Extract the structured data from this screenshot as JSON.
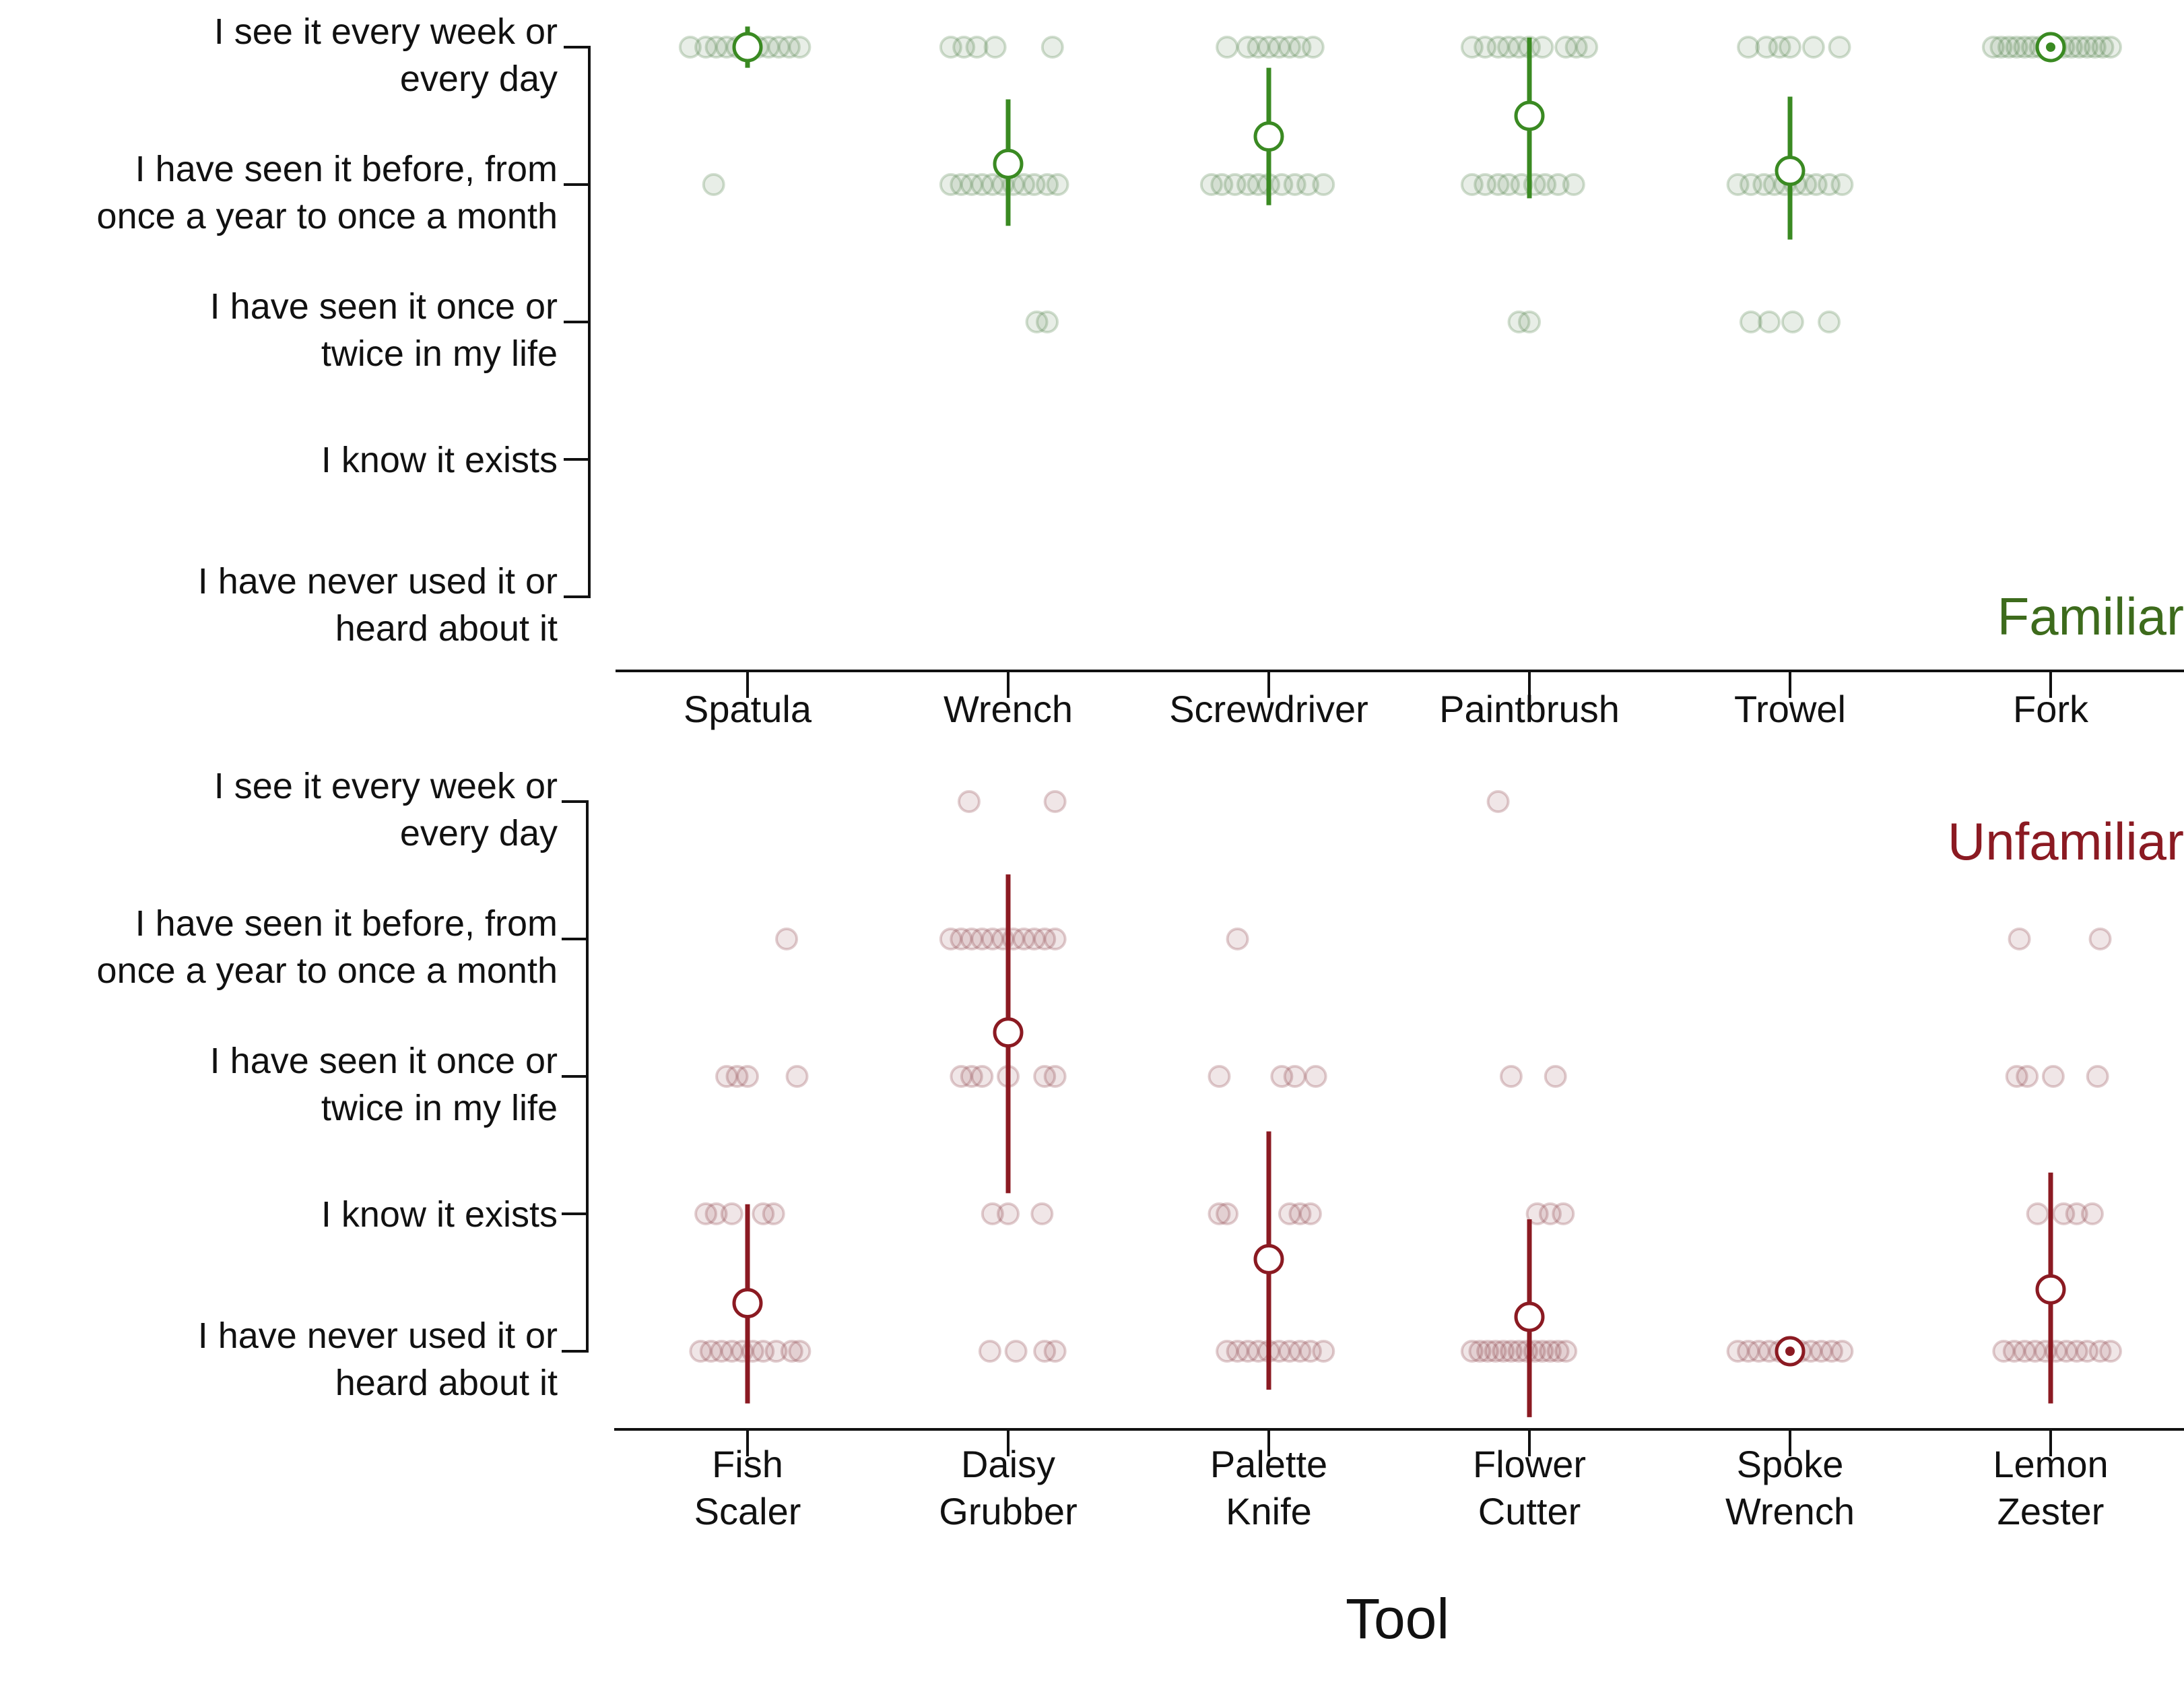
{
  "x_axis_title": "Tool",
  "y_levels": [
    [
      "I have  never used it or",
      "heard about it"
    ],
    [
      "I know it exists"
    ],
    [
      "I have seen it once or",
      "twice in my life"
    ],
    [
      "I have seen it before, from",
      "once a year to once a month"
    ],
    [
      "I see it every week or",
      "every day"
    ]
  ],
  "colors": {
    "familiar": "#3a8a22",
    "familiar_title": "#3d6b1c",
    "unfamiliar": "#8b1a22",
    "familiar_dots": "#4f7f45",
    "unfamiliar_dots": "#8a3f45",
    "axis": "#111111"
  },
  "chart_data": [
    {
      "type": "scatter",
      "panel": "Familiar",
      "title": "Familiar",
      "y_scale": "ordinal 0-4 (0 = never used, 4 = every week or day)",
      "legend": "none",
      "grid": false,
      "categories": [
        [
          "Spatula"
        ],
        [
          "Wrench"
        ],
        [
          "Screwdriver"
        ],
        [
          "Paintbrush"
        ],
        [
          "Trowel"
        ],
        [
          "Fork"
        ]
      ],
      "means": [
        4.0,
        3.15,
        3.35,
        3.5,
        3.1,
        4.0
      ],
      "ci_low": [
        3.85,
        2.7,
        2.85,
        2.9,
        2.6,
        4.0
      ],
      "ci_high": [
        4.15,
        3.62,
        3.85,
        4.07,
        3.64,
        4.0
      ],
      "responses": [
        [
          [
            4,
            -0.22
          ],
          [
            4,
            -0.16
          ],
          [
            4,
            -0.12
          ],
          [
            4,
            -0.08
          ],
          [
            4,
            -0.04
          ],
          [
            4,
            0.0
          ],
          [
            4,
            0.04
          ],
          [
            4,
            0.08
          ],
          [
            4,
            0.12
          ],
          [
            4,
            0.16
          ],
          [
            4,
            0.2
          ],
          [
            3,
            -0.13
          ]
        ],
        [
          [
            4,
            -0.22
          ],
          [
            4,
            -0.17
          ],
          [
            4,
            -0.12
          ],
          [
            4,
            -0.05
          ],
          [
            4,
            0.17
          ],
          [
            3,
            -0.22
          ],
          [
            3,
            -0.18
          ],
          [
            3,
            -0.14
          ],
          [
            3,
            -0.1
          ],
          [
            3,
            -0.06
          ],
          [
            3,
            -0.02
          ],
          [
            3,
            0.02
          ],
          [
            3,
            0.06
          ],
          [
            3,
            0.1
          ],
          [
            3,
            0.15
          ],
          [
            3,
            0.19
          ],
          [
            2,
            0.11
          ],
          [
            2,
            0.15
          ]
        ],
        [
          [
            4,
            -0.16
          ],
          [
            4,
            -0.08
          ],
          [
            4,
            -0.04
          ],
          [
            4,
            0.0
          ],
          [
            4,
            0.04
          ],
          [
            4,
            0.08
          ],
          [
            4,
            0.12
          ],
          [
            4,
            0.17
          ],
          [
            3,
            -0.22
          ],
          [
            3,
            -0.18
          ],
          [
            3,
            -0.13
          ],
          [
            3,
            -0.08
          ],
          [
            3,
            -0.04
          ],
          [
            3,
            0.0
          ],
          [
            3,
            0.05
          ],
          [
            3,
            0.1
          ],
          [
            3,
            0.15
          ],
          [
            3,
            0.21
          ]
        ],
        [
          [
            4,
            -0.22
          ],
          [
            4,
            -0.17
          ],
          [
            4,
            -0.12
          ],
          [
            4,
            -0.08
          ],
          [
            4,
            -0.04
          ],
          [
            4,
            0.0
          ],
          [
            4,
            0.05
          ],
          [
            4,
            0.14
          ],
          [
            4,
            0.18
          ],
          [
            4,
            0.22
          ],
          [
            3,
            -0.22
          ],
          [
            3,
            -0.17
          ],
          [
            3,
            -0.12
          ],
          [
            3,
            -0.08
          ],
          [
            3,
            -0.03
          ],
          [
            3,
            0.02
          ],
          [
            3,
            0.06
          ],
          [
            3,
            0.11
          ],
          [
            3,
            0.17
          ],
          [
            2,
            -0.04
          ],
          [
            2,
            0.0
          ]
        ],
        [
          [
            4,
            -0.16
          ],
          [
            4,
            -0.09
          ],
          [
            4,
            -0.04
          ],
          [
            4,
            0.0
          ],
          [
            4,
            0.09
          ],
          [
            4,
            0.19
          ],
          [
            3,
            -0.2
          ],
          [
            3,
            -0.15
          ],
          [
            3,
            -0.1
          ],
          [
            3,
            -0.06
          ],
          [
            3,
            -0.02
          ],
          [
            3,
            0.02
          ],
          [
            3,
            0.06
          ],
          [
            3,
            0.1
          ],
          [
            3,
            0.15
          ],
          [
            3,
            0.2
          ],
          [
            2,
            -0.15
          ],
          [
            2,
            -0.08
          ],
          [
            2,
            0.01
          ],
          [
            2,
            0.15
          ]
        ],
        [
          [
            4,
            -0.22
          ],
          [
            4,
            -0.19
          ],
          [
            4,
            -0.16
          ],
          [
            4,
            -0.13
          ],
          [
            4,
            -0.1
          ],
          [
            4,
            -0.07
          ],
          [
            4,
            -0.04
          ],
          [
            4,
            -0.01
          ],
          [
            4,
            0.02
          ],
          [
            4,
            0.05
          ],
          [
            4,
            0.08
          ],
          [
            4,
            0.11
          ],
          [
            4,
            0.14
          ],
          [
            4,
            0.17
          ],
          [
            4,
            0.2
          ],
          [
            4,
            0.23
          ]
        ]
      ]
    },
    {
      "type": "scatter",
      "panel": "Unfamiliar",
      "title": "Unfamiliar",
      "y_scale": "ordinal 0-4 (0 = never used, 4 = every week or day)",
      "legend": "none",
      "grid": false,
      "categories": [
        [
          "Fish",
          "Scaler"
        ],
        [
          "Daisy",
          "Grubber"
        ],
        [
          "Palette",
          "Knife"
        ],
        [
          "Flower",
          "Cutter"
        ],
        [
          "Spoke",
          "Wrench"
        ],
        [
          "Lemon",
          "Zester"
        ]
      ],
      "means": [
        0.35,
        2.32,
        0.67,
        0.25,
        0.0,
        0.45
      ],
      "ci_low": [
        -0.38,
        1.15,
        -0.28,
        -0.48,
        0.0,
        -0.38
      ],
      "ci_high": [
        1.07,
        3.47,
        1.6,
        0.96,
        0.0,
        1.3
      ],
      "responses": [
        [
          [
            3,
            0.15
          ],
          [
            2,
            -0.08
          ],
          [
            2,
            -0.04
          ],
          [
            2,
            0.0
          ],
          [
            2,
            0.19
          ],
          [
            1,
            -0.16
          ],
          [
            1,
            -0.12
          ],
          [
            1,
            -0.06
          ],
          [
            1,
            0.06
          ],
          [
            1,
            0.1
          ],
          [
            0,
            -0.18
          ],
          [
            0,
            -0.14
          ],
          [
            0,
            -0.1
          ],
          [
            0,
            -0.06
          ],
          [
            0,
            -0.02
          ],
          [
            0,
            0.02
          ],
          [
            0,
            0.06
          ],
          [
            0,
            0.11
          ],
          [
            0,
            0.17
          ],
          [
            0,
            0.2
          ]
        ],
        [
          [
            4,
            -0.15
          ],
          [
            4,
            0.18
          ],
          [
            3,
            -0.22
          ],
          [
            3,
            -0.18
          ],
          [
            3,
            -0.14
          ],
          [
            3,
            -0.1
          ],
          [
            3,
            -0.06
          ],
          [
            3,
            -0.02
          ],
          [
            3,
            0.02
          ],
          [
            3,
            0.06
          ],
          [
            3,
            0.1
          ],
          [
            3,
            0.14
          ],
          [
            3,
            0.18
          ],
          [
            2,
            -0.18
          ],
          [
            2,
            -0.14
          ],
          [
            2,
            -0.1
          ],
          [
            2,
            0.0
          ],
          [
            2,
            0.14
          ],
          [
            2,
            0.18
          ],
          [
            1,
            -0.06
          ],
          [
            1,
            0.0
          ],
          [
            1,
            0.13
          ],
          [
            0,
            -0.07
          ],
          [
            0,
            0.03
          ],
          [
            0,
            0.14
          ],
          [
            0,
            0.18
          ]
        ],
        [
          [
            3,
            -0.12
          ],
          [
            2,
            -0.19
          ],
          [
            2,
            0.05
          ],
          [
            2,
            0.1
          ],
          [
            2,
            0.18
          ],
          [
            1,
            -0.19
          ],
          [
            1,
            -0.16
          ],
          [
            1,
            0.08
          ],
          [
            1,
            0.12
          ],
          [
            1,
            0.16
          ],
          [
            0,
            -0.16
          ],
          [
            0,
            -0.12
          ],
          [
            0,
            -0.08
          ],
          [
            0,
            -0.04
          ],
          [
            0,
            0.0
          ],
          [
            0,
            0.04
          ],
          [
            0,
            0.08
          ],
          [
            0,
            0.12
          ],
          [
            0,
            0.16
          ],
          [
            0,
            0.21
          ]
        ],
        [
          [
            4,
            -0.12
          ],
          [
            2,
            -0.07
          ],
          [
            2,
            0.1
          ],
          [
            1,
            0.03
          ],
          [
            1,
            0.08
          ],
          [
            1,
            0.13
          ],
          [
            0,
            -0.22
          ],
          [
            0,
            -0.19
          ],
          [
            0,
            -0.16
          ],
          [
            0,
            -0.13
          ],
          [
            0,
            -0.1
          ],
          [
            0,
            -0.07
          ],
          [
            0,
            -0.04
          ],
          [
            0,
            -0.01
          ],
          [
            0,
            0.02
          ],
          [
            0,
            0.05
          ],
          [
            0,
            0.08
          ],
          [
            0,
            0.11
          ],
          [
            0,
            0.14
          ]
        ],
        [
          [
            0,
            -0.2
          ],
          [
            0,
            -0.16
          ],
          [
            0,
            -0.12
          ],
          [
            0,
            -0.08
          ],
          [
            0,
            -0.04
          ],
          [
            0,
            0.0
          ],
          [
            0,
            0.04
          ],
          [
            0,
            0.08
          ],
          [
            0,
            0.12
          ],
          [
            0,
            0.16
          ],
          [
            0,
            0.2
          ]
        ],
        [
          [
            3,
            -0.12
          ],
          [
            3,
            0.19
          ],
          [
            2,
            -0.13
          ],
          [
            2,
            -0.09
          ],
          [
            2,
            0.01
          ],
          [
            2,
            0.18
          ],
          [
            1,
            -0.05
          ],
          [
            1,
            0.05
          ],
          [
            1,
            0.1
          ],
          [
            1,
            0.16
          ],
          [
            0,
            -0.18
          ],
          [
            0,
            -0.14
          ],
          [
            0,
            -0.1
          ],
          [
            0,
            -0.06
          ],
          [
            0,
            -0.02
          ],
          [
            0,
            0.02
          ],
          [
            0,
            0.06
          ],
          [
            0,
            0.1
          ],
          [
            0,
            0.14
          ],
          [
            0,
            0.19
          ],
          [
            0,
            0.23
          ]
        ]
      ]
    }
  ]
}
